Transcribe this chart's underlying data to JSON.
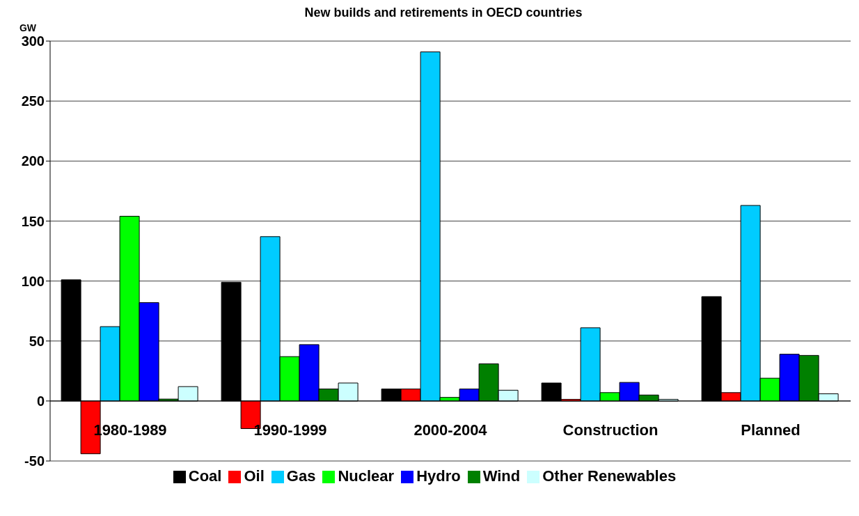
{
  "chart_data": {
    "type": "bar",
    "title": "New builds and retirements in OECD countries",
    "ylabel": "GW",
    "categories": [
      "1980-1989",
      "1990-1999",
      "2000-2004",
      "Construction",
      "Planned"
    ],
    "series": [
      {
        "name": "Coal",
        "color": "#000000",
        "values": [
          101,
          99,
          10,
          15,
          87
        ]
      },
      {
        "name": "Oil",
        "color": "#ff0000",
        "values": [
          -44,
          -23,
          10,
          1.4,
          7
        ]
      },
      {
        "name": "Gas",
        "color": "#00ccff",
        "values": [
          62,
          137,
          291,
          61,
          163
        ]
      },
      {
        "name": "Nuclear",
        "color": "#00ff00",
        "values": [
          154,
          37,
          3,
          7,
          19
        ]
      },
      {
        "name": "Hydro",
        "color": "#0000ff",
        "values": [
          82,
          47,
          10,
          15.5,
          39
        ]
      },
      {
        "name": "Wind",
        "color": "#008000",
        "values": [
          1.6,
          10,
          31,
          5,
          38
        ]
      },
      {
        "name": "Other Renewables",
        "color": "#ccffff",
        "values": [
          12,
          15,
          9,
          1.4,
          6
        ]
      }
    ],
    "ylim": [
      -50,
      300
    ],
    "yticks": [
      -50,
      0,
      50,
      100,
      150,
      200,
      250,
      300
    ],
    "grid": "y",
    "legend": "bottom"
  }
}
